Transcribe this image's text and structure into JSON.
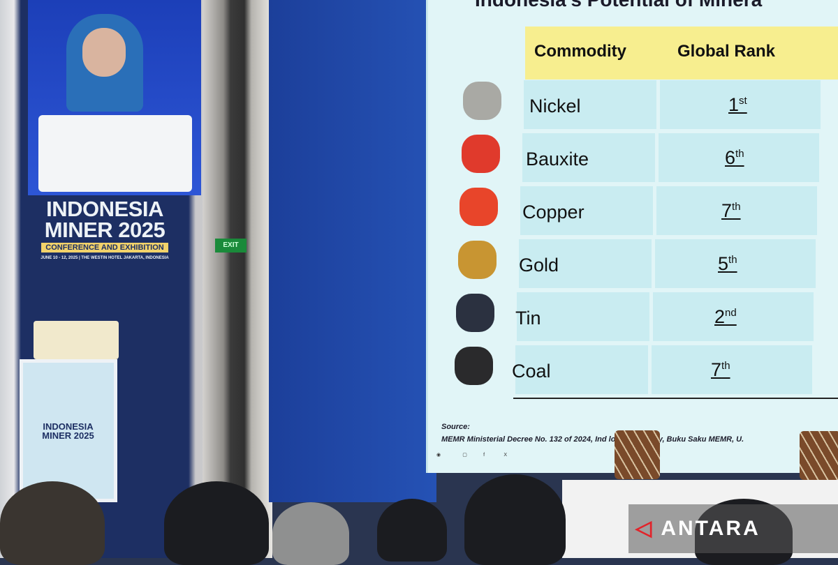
{
  "banner": {
    "line1": "INDONESIA",
    "line2": "MINER 2025",
    "subtitle": "CONFERENCE AND EXHIBITION",
    "date": "JUNE 10 - 12, 2025 | THE WESTIN HOTEL JAKARTA, INDONESIA"
  },
  "small_screen": {
    "line1": "INDONESIA",
    "line2": "MINER 2025"
  },
  "exit_sign": "EXIT",
  "slide": {
    "title": "Indonesia's Potential of Minera",
    "headers": [
      "Commodity",
      "Global Rank"
    ],
    "rows": [
      {
        "name": "Nickel",
        "rank": "1",
        "suffix": "st",
        "color": "#a9a9a4"
      },
      {
        "name": "Bauxite",
        "rank": "6",
        "suffix": "th",
        "color": "#e03a2c"
      },
      {
        "name": "Copper",
        "rank": "7",
        "suffix": "th",
        "color": "#e8452a"
      },
      {
        "name": "Gold",
        "rank": "5",
        "suffix": "th",
        "color": "#c89532"
      },
      {
        "name": "Tin",
        "rank": "2",
        "suffix": "nd",
        "color": "#2b3140"
      },
      {
        "name": "Coal",
        "rank": "7",
        "suffix": "th",
        "color": "#2a2a2c"
      }
    ],
    "source_label": "Source:",
    "source_text": "MEMR Ministerial Decree No. 132 of 2024, Ind          logical Agency, Buku Saku MEMR, U."
  },
  "watermark": {
    "text": "ANTARA"
  }
}
